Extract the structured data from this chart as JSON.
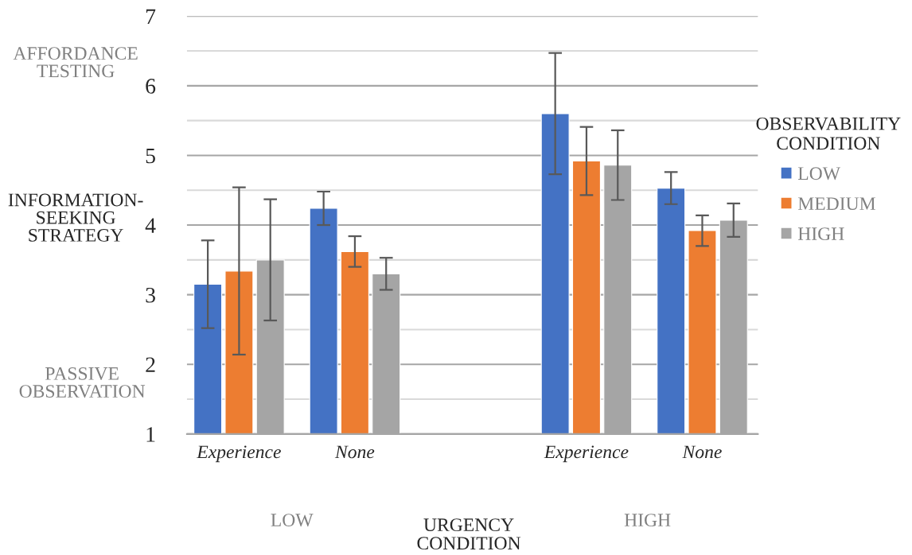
{
  "chart_data": {
    "type": "bar",
    "categories": [
      "Experience",
      "None",
      null,
      "Experience",
      "None"
    ],
    "xlabel": "URGENCY\nCONDITION",
    "ylabel": "INFORMATION-\nSEEKING\nSTRATEGY",
    "legend_title": "OBSERVABILITY\nCONDITION",
    "series": [
      {
        "name": "LOW",
        "color": "#4472c4",
        "values": [
          3.15,
          4.24,
          null,
          5.6,
          4.53
        ],
        "errors": [
          0.63,
          0.24,
          null,
          0.87,
          0.23
        ]
      },
      {
        "name": "MEDIUM",
        "color": "#ed7d31",
        "values": [
          3.34,
          3.62,
          null,
          4.92,
          3.92
        ],
        "errors": [
          1.2,
          0.22,
          null,
          0.49,
          0.22
        ]
      },
      {
        "name": "HIGH",
        "color": "#a5a5a5",
        "values": [
          3.5,
          3.3,
          null,
          4.86,
          4.07
        ],
        "errors": [
          0.87,
          0.23,
          null,
          0.5,
          0.24
        ]
      }
    ],
    "ylim": [
      1,
      7
    ],
    "yticks": [
      1,
      {
        "value": 1.5,
        "label": null
      },
      2,
      {
        "value": 2.5,
        "label": null
      },
      3,
      {
        "value": 3.5,
        "label": null
      },
      4,
      {
        "value": 4.5,
        "label": null
      },
      5,
      {
        "value": 5.5,
        "label": null
      },
      6,
      {
        "value": 6.5,
        "label": null
      },
      7
    ],
    "grid": "y",
    "legend": "right",
    "annotations": [
      "AFFORDANCE\nTESTING",
      "PASSIVE\nOBSERVATION",
      "LOW",
      "HIGH"
    ]
  }
}
